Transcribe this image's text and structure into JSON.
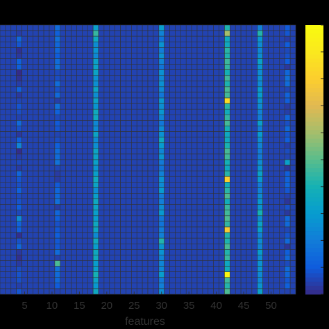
{
  "chart_data": {
    "type": "heatmap",
    "title": "",
    "xlabel": "features",
    "ylabel": "",
    "x_range": [
      0.5,
      54.5
    ],
    "n_columns": 54,
    "n_rows": 48,
    "x_ticks": [
      5,
      10,
      15,
      20,
      25,
      30,
      35,
      40,
      45,
      50
    ],
    "colormap": "parula",
    "colorbar": true,
    "grid_color": "#333333",
    "background_value": 0.05,
    "column_profiles": [
      {
        "feature": 4,
        "base": 0.07
      },
      {
        "feature": 11,
        "base": 0.1
      },
      {
        "feature": 18,
        "base": 0.3
      },
      {
        "feature": 30,
        "base": 0.24
      },
      {
        "feature": 42,
        "base": 0.42
      },
      {
        "feature": 48,
        "base": 0.26
      },
      {
        "feature": 53,
        "base": 0.09
      }
    ],
    "highlight_cells": [
      {
        "feature": 42,
        "row": 1,
        "value": 0.6
      },
      {
        "feature": 42,
        "row": 13,
        "value": 0.85
      },
      {
        "feature": 42,
        "row": 27,
        "value": 0.8
      },
      {
        "feature": 42,
        "row": 36,
        "value": 0.78
      },
      {
        "feature": 42,
        "row": 44,
        "value": 0.98
      },
      {
        "feature": 11,
        "row": 42,
        "value": 0.48
      },
      {
        "feature": 4,
        "row": 21,
        "value": 0.22
      },
      {
        "feature": 4,
        "row": 34,
        "value": 0.24
      },
      {
        "feature": 18,
        "row": 1,
        "value": 0.45
      },
      {
        "feature": 18,
        "row": 44,
        "value": 0.4
      },
      {
        "feature": 30,
        "row": 20,
        "value": 0.36
      },
      {
        "feature": 30,
        "row": 38,
        "value": 0.42
      },
      {
        "feature": 48,
        "row": 1,
        "value": 0.42
      },
      {
        "feature": 48,
        "row": 33,
        "value": 0.4
      },
      {
        "feature": 53,
        "row": 24,
        "value": 0.32
      }
    ]
  }
}
